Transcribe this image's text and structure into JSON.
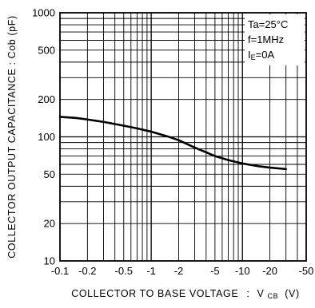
{
  "chart_data": {
    "type": "line",
    "title": "",
    "xlabel": "COLLECTOR TO BASE VOLTAGE",
    "xlabel_symbol": "V",
    "xlabel_symbol_sub": "CB",
    "xlabel_unit": "(V)",
    "ylabel": "COLLECTOR OUTPUT CAPACITANCE : Cob (pF)",
    "x_scale": "log",
    "y_scale": "log",
    "x_axis_magnitude_range": [
      0.1,
      50
    ],
    "y_range": [
      10,
      1000
    ],
    "x_ticks": [
      {
        "value": 0.1,
        "label": "-0.1"
      },
      {
        "value": 0.2,
        "label": "-0.2"
      },
      {
        "value": 0.5,
        "label": "-0.5"
      },
      {
        "value": 1,
        "label": "-1"
      },
      {
        "value": 2,
        "label": "-2"
      },
      {
        "value": 5,
        "label": "-5"
      },
      {
        "value": 10,
        "label": "-10"
      },
      {
        "value": 20,
        "label": "-20"
      },
      {
        "value": 50,
        "label": "-50"
      }
    ],
    "y_ticks": [
      {
        "value": 10,
        "label": "10"
      },
      {
        "value": 20,
        "label": "20"
      },
      {
        "value": 50,
        "label": "50"
      },
      {
        "value": 100,
        "label": "100"
      },
      {
        "value": 200,
        "label": "200"
      },
      {
        "value": 500,
        "label": "500"
      },
      {
        "value": 1000,
        "label": "1000"
      }
    ],
    "grid": true,
    "legend_position": "top-right",
    "conditions": [
      {
        "main": "Ta=25°C",
        "sub": "",
        "tail": ""
      },
      {
        "main": "f=1MHz",
        "sub": "",
        "tail": ""
      },
      {
        "main": "I",
        "sub": "E",
        "tail": "=0A"
      }
    ],
    "series": [
      {
        "x": [
          -0.1,
          -0.15,
          -0.2,
          -0.3,
          -0.5,
          -0.7,
          -1,
          -1.5,
          -2,
          -3,
          -5,
          -7,
          -10,
          -15,
          -20,
          -30
        ],
        "y": [
          145,
          142,
          138,
          132,
          123,
          117,
          110,
          101,
          94,
          82,
          70,
          65,
          61,
          58,
          56.5,
          55
        ],
        "color": "#000000"
      }
    ]
  }
}
